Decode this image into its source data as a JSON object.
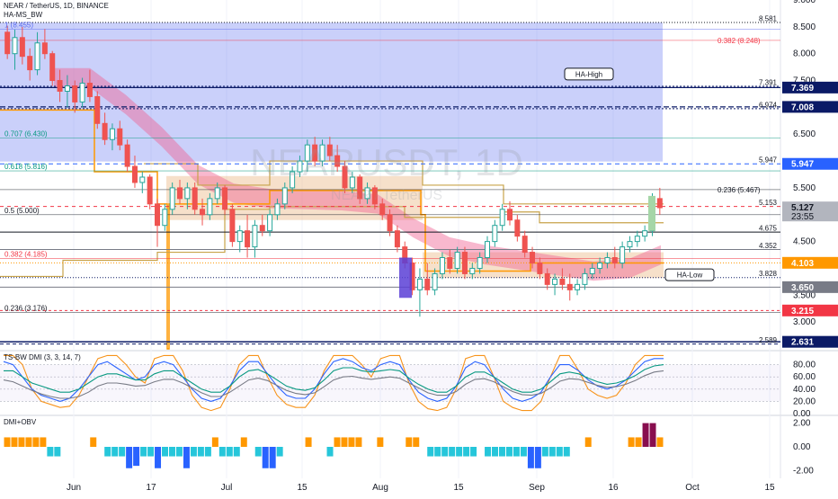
{
  "header": {
    "symbol_line": "NEAR / TetherUS, 1D, BINANCE",
    "indicator": "HA-MS_BW"
  },
  "watermark": {
    "big": "NEARUSDT, 1D",
    "small": "NEAR / TetherUS"
  },
  "chart_data": [
    {
      "type": "candlestick",
      "symbol": "NEAR / TetherUS",
      "interval": "1D",
      "exchange": "BINANCE",
      "ylim": [
        2.5,
        9.0
      ],
      "y_ticks": [
        "9.000",
        "8.500",
        "8.000",
        "7.500",
        "6.500",
        "5.500",
        "5.000",
        "4.500",
        "3.500",
        "3.000"
      ],
      "x_ticks": [
        "Jun",
        "17",
        "Jul",
        "15",
        "Aug",
        "15",
        "Sep",
        "16",
        "Oct",
        "15"
      ],
      "candles": [
        {
          "o": 8.4,
          "h": 8.52,
          "l": 7.9,
          "c": 8.0
        },
        {
          "o": 8.0,
          "h": 8.45,
          "l": 7.7,
          "c": 8.3
        },
        {
          "o": 8.3,
          "h": 8.5,
          "l": 7.8,
          "c": 7.95
        },
        {
          "o": 7.95,
          "h": 8.1,
          "l": 7.5,
          "c": 7.7
        },
        {
          "o": 7.7,
          "h": 8.4,
          "l": 7.6,
          "c": 8.2
        },
        {
          "o": 8.2,
          "h": 8.46,
          "l": 7.9,
          "c": 8.0
        },
        {
          "o": 8.0,
          "h": 8.05,
          "l": 7.4,
          "c": 7.5
        },
        {
          "o": 7.5,
          "h": 7.7,
          "l": 7.1,
          "c": 7.3
        },
        {
          "o": 7.3,
          "h": 7.6,
          "l": 7.0,
          "c": 7.4
        },
        {
          "o": 7.4,
          "h": 7.5,
          "l": 6.9,
          "c": 7.1
        },
        {
          "o": 7.1,
          "h": 7.55,
          "l": 7.0,
          "c": 7.45
        },
        {
          "o": 7.45,
          "h": 7.7,
          "l": 7.1,
          "c": 7.2
        },
        {
          "o": 7.2,
          "h": 7.3,
          "l": 6.6,
          "c": 6.7
        },
        {
          "o": 6.7,
          "h": 6.9,
          "l": 6.3,
          "c": 6.4
        },
        {
          "o": 6.4,
          "h": 6.7,
          "l": 6.2,
          "c": 6.6
        },
        {
          "o": 6.6,
          "h": 6.75,
          "l": 6.2,
          "c": 6.3
        },
        {
          "o": 6.3,
          "h": 6.4,
          "l": 5.8,
          "c": 5.9
        },
        {
          "o": 5.9,
          "h": 6.1,
          "l": 5.5,
          "c": 5.6
        },
        {
          "o": 5.6,
          "h": 5.8,
          "l": 5.4,
          "c": 5.7
        },
        {
          "o": 5.7,
          "h": 5.75,
          "l": 5.1,
          "c": 5.2
        },
        {
          "o": 5.2,
          "h": 5.3,
          "l": 4.4,
          "c": 4.8
        },
        {
          "o": 4.8,
          "h": 5.2,
          "l": 4.7,
          "c": 5.1
        },
        {
          "o": 5.1,
          "h": 5.6,
          "l": 5.0,
          "c": 5.5
        },
        {
          "o": 5.5,
          "h": 5.65,
          "l": 5.2,
          "c": 5.3
        },
        {
          "o": 5.3,
          "h": 5.6,
          "l": 5.1,
          "c": 5.5
        },
        {
          "o": 5.5,
          "h": 5.6,
          "l": 5.0,
          "c": 5.1
        },
        {
          "o": 5.1,
          "h": 5.3,
          "l": 4.8,
          "c": 5.0
        },
        {
          "o": 5.0,
          "h": 5.4,
          "l": 4.9,
          "c": 5.3
        },
        {
          "o": 5.3,
          "h": 5.6,
          "l": 5.2,
          "c": 5.5
        },
        {
          "o": 5.5,
          "h": 5.55,
          "l": 5.0,
          "c": 5.1
        },
        {
          "o": 5.1,
          "h": 5.2,
          "l": 4.4,
          "c": 4.5
        },
        {
          "o": 4.5,
          "h": 4.8,
          "l": 4.3,
          "c": 4.7
        },
        {
          "o": 4.7,
          "h": 5.0,
          "l": 4.2,
          "c": 4.4
        },
        {
          "o": 4.4,
          "h": 4.9,
          "l": 4.2,
          "c": 4.8
        },
        {
          "o": 4.8,
          "h": 5.0,
          "l": 4.6,
          "c": 4.7
        },
        {
          "o": 4.7,
          "h": 5.1,
          "l": 4.6,
          "c": 5.0
        },
        {
          "o": 5.0,
          "h": 5.3,
          "l": 4.9,
          "c": 5.2
        },
        {
          "o": 5.2,
          "h": 5.6,
          "l": 5.1,
          "c": 5.5
        },
        {
          "o": 5.5,
          "h": 5.9,
          "l": 5.4,
          "c": 5.8
        },
        {
          "o": 5.8,
          "h": 6.1,
          "l": 5.7,
          "c": 6.0
        },
        {
          "o": 6.0,
          "h": 6.4,
          "l": 5.8,
          "c": 6.3
        },
        {
          "o": 6.3,
          "h": 6.45,
          "l": 5.9,
          "c": 6.0
        },
        {
          "o": 6.0,
          "h": 6.4,
          "l": 5.9,
          "c": 6.3
        },
        {
          "o": 6.3,
          "h": 6.45,
          "l": 6.0,
          "c": 6.1
        },
        {
          "o": 6.1,
          "h": 6.3,
          "l": 5.8,
          "c": 5.9
        },
        {
          "o": 5.9,
          "h": 6.0,
          "l": 5.4,
          "c": 5.5
        },
        {
          "o": 5.5,
          "h": 5.8,
          "l": 5.4,
          "c": 5.7
        },
        {
          "o": 5.7,
          "h": 5.75,
          "l": 5.2,
          "c": 5.3
        },
        {
          "o": 5.3,
          "h": 5.6,
          "l": 5.2,
          "c": 5.5
        },
        {
          "o": 5.5,
          "h": 5.55,
          "l": 5.1,
          "c": 5.2
        },
        {
          "o": 5.2,
          "h": 5.3,
          "l": 4.9,
          "c": 5.0
        },
        {
          "o": 5.0,
          "h": 5.1,
          "l": 4.6,
          "c": 4.7
        },
        {
          "o": 4.7,
          "h": 4.8,
          "l": 4.3,
          "c": 4.4
        },
        {
          "o": 4.4,
          "h": 4.5,
          "l": 4.0,
          "c": 4.1
        },
        {
          "o": 4.1,
          "h": 4.2,
          "l": 3.5,
          "c": 3.6
        },
        {
          "o": 3.6,
          "h": 4.0,
          "l": 3.1,
          "c": 3.8
        },
        {
          "o": 3.8,
          "h": 4.1,
          "l": 3.5,
          "c": 3.6
        },
        {
          "o": 3.6,
          "h": 4.0,
          "l": 3.5,
          "c": 3.9
        },
        {
          "o": 3.9,
          "h": 4.3,
          "l": 3.8,
          "c": 4.2
        },
        {
          "o": 4.2,
          "h": 4.35,
          "l": 3.9,
          "c": 4.0
        },
        {
          "o": 4.0,
          "h": 4.4,
          "l": 3.9,
          "c": 4.3
        },
        {
          "o": 4.3,
          "h": 4.4,
          "l": 3.8,
          "c": 3.9
        },
        {
          "o": 3.9,
          "h": 4.1,
          "l": 3.8,
          "c": 4.0
        },
        {
          "o": 4.0,
          "h": 4.3,
          "l": 3.9,
          "c": 4.2
        },
        {
          "o": 4.2,
          "h": 4.6,
          "l": 4.1,
          "c": 4.5
        },
        {
          "o": 4.5,
          "h": 4.9,
          "l": 4.4,
          "c": 4.8
        },
        {
          "o": 4.8,
          "h": 5.2,
          "l": 4.7,
          "c": 5.1
        },
        {
          "o": 5.1,
          "h": 5.25,
          "l": 4.8,
          "c": 4.9
        },
        {
          "o": 4.9,
          "h": 5.0,
          "l": 4.5,
          "c": 4.6
        },
        {
          "o": 4.6,
          "h": 4.7,
          "l": 4.2,
          "c": 4.3
        },
        {
          "o": 4.3,
          "h": 4.4,
          "l": 4.0,
          "c": 4.1
        },
        {
          "o": 4.1,
          "h": 4.2,
          "l": 3.8,
          "c": 3.9
        },
        {
          "o": 3.9,
          "h": 4.0,
          "l": 3.6,
          "c": 3.7
        },
        {
          "o": 3.7,
          "h": 3.9,
          "l": 3.5,
          "c": 3.8
        },
        {
          "o": 3.8,
          "h": 4.0,
          "l": 3.6,
          "c": 3.7
        },
        {
          "o": 3.7,
          "h": 3.9,
          "l": 3.4,
          "c": 3.6
        },
        {
          "o": 3.6,
          "h": 3.8,
          "l": 3.5,
          "c": 3.7
        },
        {
          "o": 3.7,
          "h": 4.0,
          "l": 3.6,
          "c": 3.9
        },
        {
          "o": 3.9,
          "h": 4.1,
          "l": 3.8,
          "c": 4.0
        },
        {
          "o": 4.0,
          "h": 4.2,
          "l": 3.9,
          "c": 4.1
        },
        {
          "o": 4.1,
          "h": 4.3,
          "l": 4.0,
          "c": 4.2
        },
        {
          "o": 4.2,
          "h": 4.4,
          "l": 4.0,
          "c": 4.1
        },
        {
          "o": 4.1,
          "h": 4.5,
          "l": 4.0,
          "c": 4.4
        },
        {
          "o": 4.4,
          "h": 4.6,
          "l": 4.3,
          "c": 4.5
        },
        {
          "o": 4.5,
          "h": 4.7,
          "l": 4.4,
          "c": 4.6
        },
        {
          "o": 4.6,
          "h": 4.8,
          "l": 4.5,
          "c": 4.7
        },
        {
          "o": 4.7,
          "h": 5.4,
          "l": 4.6,
          "c": 5.3
        },
        {
          "o": 5.3,
          "h": 5.5,
          "l": 5.0,
          "c": 5.13
        }
      ],
      "fib_levels": [
        {
          "label": "1 (8.455)",
          "value": 8.455
        },
        {
          "label": "0.382 (8.248)",
          "value": 8.248
        },
        {
          "label": "0.707 (6.430)",
          "value": 6.43
        },
        {
          "label": "0.618 (5.816)",
          "value": 5.816
        },
        {
          "label": "0.236 (5.467)",
          "value": 5.467
        },
        {
          "label": "0.5 (5.000)",
          "value": 5.0
        },
        {
          "label": "0.382 (4.185)",
          "value": 4.185
        },
        {
          "label": "0.236 (3.176)",
          "value": 3.176
        }
      ],
      "price_levels": [
        {
          "label": "8.581",
          "value": 8.581
        },
        {
          "label": "7.391",
          "value": 7.391
        },
        {
          "label": "6.974",
          "value": 6.974
        },
        {
          "label": "5.947",
          "value": 5.947
        },
        {
          "label": "5.153",
          "value": 5.153
        },
        {
          "label": "4.675",
          "value": 4.675
        },
        {
          "label": "4.352",
          "value": 4.352
        },
        {
          "label": "3.828",
          "value": 3.828
        },
        {
          "label": "2.589",
          "value": 2.589
        }
      ],
      "axis_badges": [
        {
          "label": "7.369",
          "value": 7.369,
          "color": "#0b1a66"
        },
        {
          "label": "7.008",
          "value": 7.008,
          "color": "#0b1a66"
        },
        {
          "label": "5.947",
          "value": 5.947,
          "color": "#2962ff"
        },
        {
          "label": "5.127",
          "sub": "23:55",
          "value": 5.127,
          "color": "#b2b5be"
        },
        {
          "label": "4.103",
          "value": 4.103,
          "color": "#ff9800"
        },
        {
          "label": "3.650",
          "value": 3.65,
          "color": "#787b86"
        },
        {
          "label": "3.215",
          "value": 3.215,
          "color": "#f23645"
        },
        {
          "label": "2.631",
          "value": 2.631,
          "color": "#0b1a66"
        }
      ],
      "annotations": [
        {
          "text": "HA-High",
          "value": 7.62
        },
        {
          "text": "HA-Low",
          "value": 3.88
        }
      ]
    },
    {
      "type": "line",
      "title": "TS-BW DMI (3, 3, 14, 7)",
      "ylim": [
        0,
        100
      ],
      "y_ticks": [
        "80.00",
        "60.00",
        "40.00",
        "20.00",
        "0.00"
      ],
      "series": [
        {
          "color": "#f7931a",
          "values": [
            95,
            95,
            80,
            40,
            20,
            15,
            10,
            12,
            30,
            60,
            90,
            95,
            95,
            80,
            60,
            50,
            90,
            95,
            95,
            70,
            30,
            10,
            5,
            10,
            40,
            80,
            95,
            95,
            60,
            30,
            15,
            10,
            10,
            30,
            70,
            95,
            95,
            95,
            80,
            60,
            90,
            95,
            95,
            50,
            20,
            8,
            5,
            10,
            40,
            90,
            95,
            95,
            60,
            20,
            10,
            5,
            5,
            20,
            60,
            95,
            95,
            70,
            40,
            30,
            25,
            30,
            50,
            80,
            95,
            95,
            95
          ]
        },
        {
          "color": "#2962ff",
          "values": [
            85,
            80,
            60,
            40,
            30,
            25,
            20,
            25,
            40,
            60,
            80,
            85,
            75,
            65,
            55,
            60,
            80,
            85,
            80,
            60,
            40,
            25,
            20,
            25,
            45,
            70,
            85,
            85,
            65,
            45,
            30,
            25,
            25,
            40,
            65,
            85,
            90,
            85,
            75,
            70,
            80,
            85,
            80,
            55,
            35,
            25,
            20,
            25,
            45,
            75,
            85,
            80,
            60,
            40,
            25,
            20,
            25,
            35,
            60,
            80,
            80,
            70,
            55,
            45,
            40,
            45,
            55,
            70,
            85,
            90,
            90
          ]
        },
        {
          "color": "#089981",
          "values": [
            70,
            70,
            60,
            50,
            45,
            40,
            35,
            35,
            40,
            50,
            60,
            65,
            65,
            60,
            55,
            55,
            65,
            70,
            70,
            60,
            50,
            40,
            35,
            35,
            45,
            60,
            70,
            72,
            65,
            55,
            45,
            40,
            38,
            42,
            55,
            70,
            75,
            75,
            70,
            68,
            70,
            72,
            70,
            58,
            48,
            40,
            35,
            35,
            45,
            60,
            68,
            68,
            60,
            50,
            40,
            35,
            35,
            40,
            52,
            65,
            68,
            65,
            58,
            52,
            48,
            50,
            55,
            62,
            72,
            78,
            80
          ]
        },
        {
          "color": "#787b86",
          "values": [
            55,
            52,
            45,
            38,
            32,
            28,
            25,
            25,
            28,
            35,
            45,
            50,
            50,
            48,
            45,
            46,
            52,
            56,
            56,
            50,
            42,
            34,
            28,
            28,
            35,
            45,
            55,
            58,
            54,
            46,
            38,
            33,
            31,
            34,
            44,
            55,
            60,
            61,
            58,
            56,
            58,
            60,
            58,
            50,
            42,
            34,
            30,
            30,
            36,
            48,
            56,
            57,
            52,
            44,
            36,
            31,
            30,
            33,
            42,
            53,
            57,
            56,
            51,
            46,
            43,
            44,
            48,
            54,
            62,
            68,
            70
          ]
        }
      ]
    },
    {
      "type": "bar",
      "title": "DMI+OBV",
      "ylim": [
        -2.5,
        2.5
      ],
      "y_ticks": [
        "2.00",
        "0.00",
        "-2.00"
      ],
      "values": [
        0.8,
        0.8,
        0.8,
        0.8,
        0.8,
        0.8,
        -0.8,
        -0.8,
        0,
        0,
        0,
        0,
        0.8,
        0,
        -0.8,
        -0.8,
        -0.8,
        -1.8,
        -1.6,
        -0.8,
        -0.8,
        -1.8,
        -0.8,
        -0.8,
        -0.8,
        -1.8,
        -0.8,
        -0.8,
        -0.8,
        0.8,
        -0.8,
        -0.8,
        -0.8,
        0.8,
        0,
        -0.8,
        -1.8,
        -1.8,
        -0.8,
        0,
        0,
        0,
        0.8,
        0,
        0,
        -0.8,
        0.8,
        0.8,
        0.8,
        0.8,
        0,
        0,
        0.8,
        0,
        0,
        0,
        0.8,
        0.8,
        0,
        -0.8,
        -0.8,
        -0.8,
        -0.8,
        -0.8,
        -0.8,
        -0.8,
        0,
        -0.8,
        -0.8,
        -0.8,
        -0.8,
        -0.8,
        -0.8,
        -1.8,
        -1.8,
        -0.8,
        -0.8,
        -0.8,
        -0.8,
        0,
        0,
        0.8,
        0,
        0,
        0,
        0,
        0,
        0.8,
        0.8,
        2.0,
        2.0,
        0.8
      ]
    }
  ]
}
